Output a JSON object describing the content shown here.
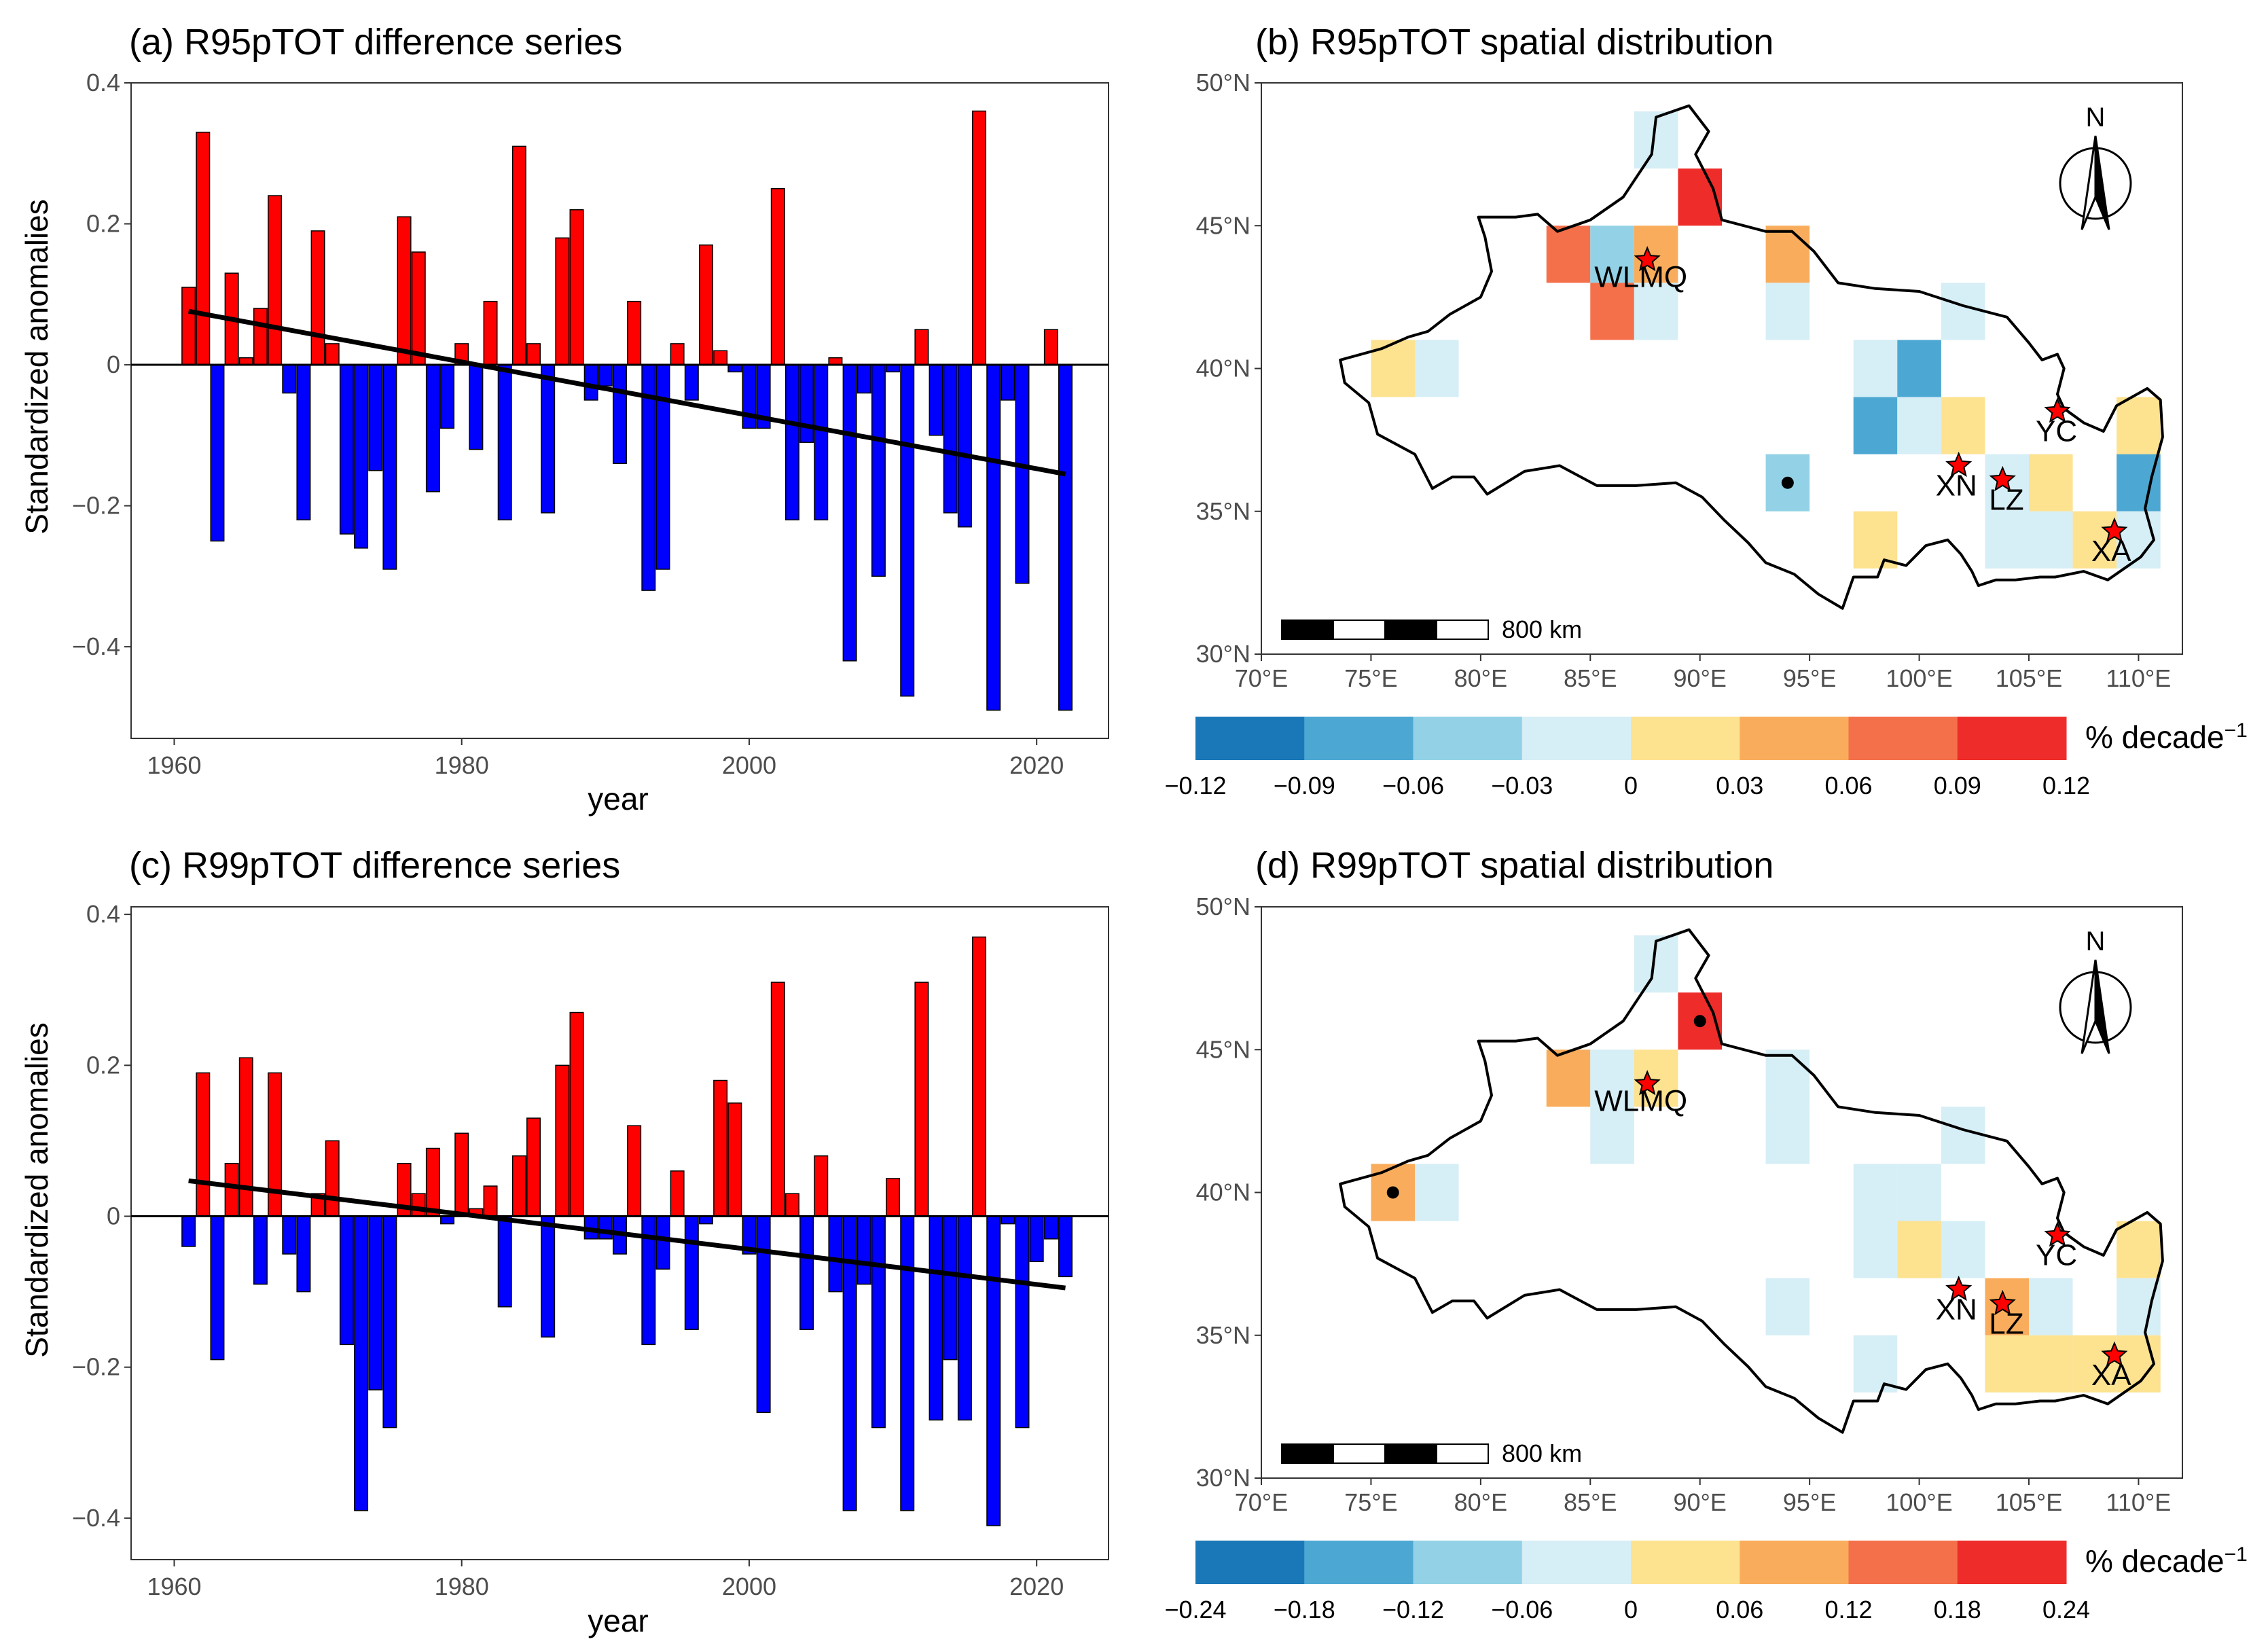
{
  "chart_data": [
    {
      "panel": "a",
      "type": "bar",
      "title": "(a) R95pTOT difference series",
      "xlabel": "year",
      "ylabel": "Standardized anomalies",
      "xlim": [
        1957,
        2025
      ],
      "ylim": [
        -0.53,
        0.4
      ],
      "xticks": [
        1960,
        1980,
        2000,
        2020
      ],
      "yticks": [
        -0.4,
        -0.2,
        0,
        0.2,
        0.4
      ],
      "ytick_labels": [
        "-0.4",
        "-0.2",
        "0",
        "0.2",
        "0.4"
      ],
      "x": [
        1961,
        1962,
        1963,
        1964,
        1965,
        1966,
        1967,
        1968,
        1969,
        1970,
        1971,
        1972,
        1973,
        1974,
        1975,
        1976,
        1977,
        1978,
        1979,
        1980,
        1981,
        1982,
        1983,
        1984,
        1985,
        1986,
        1987,
        1988,
        1989,
        1990,
        1991,
        1992,
        1993,
        1994,
        1995,
        1996,
        1997,
        1998,
        1999,
        2000,
        2001,
        2002,
        2003,
        2004,
        2005,
        2006,
        2007,
        2008,
        2009,
        2010,
        2011,
        2012,
        2013,
        2014,
        2015,
        2016,
        2017,
        2018,
        2019,
        2020,
        2021,
        2022
      ],
      "values": [
        0.11,
        0.33,
        -0.25,
        0.13,
        0.01,
        0.08,
        0.24,
        -0.04,
        -0.22,
        0.19,
        0.03,
        -0.24,
        -0.26,
        -0.15,
        -0.29,
        0.21,
        0.16,
        -0.18,
        -0.09,
        0.03,
        -0.12,
        0.09,
        -0.22,
        0.31,
        0.03,
        -0.21,
        0.18,
        0.22,
        -0.05,
        -0.03,
        -0.14,
        0.09,
        -0.32,
        -0.29,
        0.03,
        -0.05,
        0.17,
        0.02,
        -0.01,
        -0.09,
        -0.09,
        0.25,
        -0.22,
        -0.11,
        -0.22,
        0.01,
        -0.42,
        -0.04,
        -0.3,
        -0.01,
        -0.47,
        0.05,
        -0.1,
        -0.21,
        -0.23,
        0.36,
        -0.49,
        -0.05,
        -0.31,
        0.0,
        0.05,
        -0.49
      ],
      "positive_color": "#ff0000",
      "negative_color": "#0000ff",
      "trend": {
        "x": [
          1961,
          2022
        ],
        "y": [
          0.076,
          -0.155
        ]
      }
    },
    {
      "panel": "c",
      "type": "bar",
      "title": "(c) R99pTOT difference series",
      "xlabel": "year",
      "ylabel": "Standardized anomalies",
      "xlim": [
        1957,
        2025
      ],
      "ylim": [
        -0.455,
        0.41
      ],
      "xticks": [
        1960,
        1980,
        2000,
        2020
      ],
      "yticks": [
        -0.4,
        -0.2,
        0,
        0.2,
        0.4
      ],
      "ytick_labels": [
        "-0.4",
        "-0.2",
        "0",
        "0.2",
        "0.4"
      ],
      "x": [
        1961,
        1962,
        1963,
        1964,
        1965,
        1966,
        1967,
        1968,
        1969,
        1970,
        1971,
        1972,
        1973,
        1974,
        1975,
        1976,
        1977,
        1978,
        1979,
        1980,
        1981,
        1982,
        1983,
        1984,
        1985,
        1986,
        1987,
        1988,
        1989,
        1990,
        1991,
        1992,
        1993,
        1994,
        1995,
        1996,
        1997,
        1998,
        1999,
        2000,
        2001,
        2002,
        2003,
        2004,
        2005,
        2006,
        2007,
        2008,
        2009,
        2010,
        2011,
        2012,
        2013,
        2014,
        2015,
        2016,
        2017,
        2018,
        2019,
        2020,
        2021,
        2022
      ],
      "values": [
        -0.04,
        0.19,
        -0.19,
        0.07,
        0.21,
        -0.09,
        0.19,
        -0.05,
        -0.1,
        0.03,
        0.1,
        -0.17,
        -0.39,
        -0.23,
        -0.28,
        0.07,
        0.03,
        0.09,
        -0.01,
        0.11,
        0.01,
        0.04,
        -0.12,
        0.08,
        0.13,
        -0.16,
        0.2,
        0.27,
        -0.03,
        -0.03,
        -0.05,
        0.12,
        -0.17,
        -0.07,
        0.06,
        -0.15,
        -0.01,
        0.18,
        0.15,
        -0.05,
        -0.26,
        0.31,
        0.03,
        -0.15,
        0.08,
        -0.1,
        -0.39,
        -0.09,
        -0.28,
        0.05,
        -0.39,
        0.31,
        -0.27,
        -0.19,
        -0.27,
        0.37,
        -0.41,
        -0.01,
        -0.28,
        -0.06,
        -0.03,
        -0.08
      ],
      "positive_color": "#ff0000",
      "negative_color": "#0000ff",
      "trend": {
        "x": [
          1961,
          2022
        ],
        "y": [
          0.047,
          -0.095
        ]
      }
    },
    {
      "panel": "b",
      "type": "heatmap",
      "title": "(b) R95pTOT spatial distribution",
      "lon_range": [
        70,
        112
      ],
      "lat_range": [
        30,
        50
      ],
      "xticks": [
        70,
        75,
        80,
        85,
        90,
        95,
        100,
        105,
        110
      ],
      "xtick_labels": [
        "70°E",
        "75°E",
        "80°E",
        "85°E",
        "90°E",
        "95°E",
        "100°E",
        "105°E",
        "110°E"
      ],
      "yticks": [
        30,
        35,
        40,
        45,
        50
      ],
      "ytick_labels": [
        "30°N",
        "35°N",
        "40°N",
        "45°N",
        "50°N"
      ],
      "cells": [
        {
          "lon": 88,
          "lat": 48,
          "v": -0.02
        },
        {
          "lon": 90,
          "lat": 46,
          "v": 0.11
        },
        {
          "lon": 84,
          "lat": 44,
          "v": 0.08
        },
        {
          "lon": 86,
          "lat": 44,
          "v": -0.05
        },
        {
          "lon": 88,
          "lat": 44,
          "v": 0.05
        },
        {
          "lon": 94,
          "lat": 44,
          "v": 0.05
        },
        {
          "lon": 86,
          "lat": 42,
          "v": 0.08
        },
        {
          "lon": 88,
          "lat": 42,
          "v": -0.02
        },
        {
          "lon": 94,
          "lat": 42,
          "v": -0.02
        },
        {
          "lon": 102,
          "lat": 42,
          "v": -0.02
        },
        {
          "lon": 76,
          "lat": 40,
          "v": 0.02
        },
        {
          "lon": 78,
          "lat": 40,
          "v": -0.02
        },
        {
          "lon": 98,
          "lat": 40,
          "v": -0.02
        },
        {
          "lon": 100,
          "lat": 40,
          "v": -0.07
        },
        {
          "lon": 98,
          "lat": 38,
          "v": -0.07
        },
        {
          "lon": 100,
          "lat": 38,
          "v": -0.02
        },
        {
          "lon": 102,
          "lat": 38,
          "v": 0.02
        },
        {
          "lon": 110,
          "lat": 38,
          "v": 0.02
        },
        {
          "lon": 94,
          "lat": 36,
          "v": -0.05
        },
        {
          "lon": 104,
          "lat": 36,
          "v": -0.02
        },
        {
          "lon": 106,
          "lat": 36,
          "v": 0.02
        },
        {
          "lon": 110,
          "lat": 36,
          "v": -0.07
        },
        {
          "lon": 98,
          "lat": 34,
          "v": 0.02
        },
        {
          "lon": 104,
          "lat": 34,
          "v": -0.02
        },
        {
          "lon": 106,
          "lat": 34,
          "v": -0.02
        },
        {
          "lon": 108,
          "lat": 34,
          "v": 0.02
        },
        {
          "lon": 110,
          "lat": 34,
          "v": -0.02
        }
      ],
      "significant_points": [
        {
          "lon": 94,
          "lat": 36
        }
      ],
      "cities": [
        {
          "name": "WLMQ",
          "lon": 87.6,
          "lat": 43.8
        },
        {
          "name": "YC",
          "lon": 106.3,
          "lat": 38.5
        },
        {
          "name": "XN",
          "lon": 101.8,
          "lat": 36.6
        },
        {
          "name": "LZ",
          "lon": 103.8,
          "lat": 36.1
        },
        {
          "name": "XA",
          "lon": 108.9,
          "lat": 34.3
        }
      ],
      "scale_bar_label": "800 km",
      "north_label": "N",
      "colorbar": {
        "ticks": [
          "-0.12",
          "-0.09",
          "-0.06",
          "-0.03",
          "0",
          "0.03",
          "0.06",
          "0.09",
          "0.12"
        ],
        "bounds": [
          -0.12,
          -0.09,
          -0.06,
          -0.03,
          0,
          0.03,
          0.06,
          0.09,
          0.12
        ],
        "colors": [
          "#1a78b8",
          "#4ca8d2",
          "#93d2e6",
          "#d6eef6",
          "#fde290",
          "#f9ad5c",
          "#f4704a",
          "#ee2d2a"
        ],
        "unit": "% decade",
        "unit_superscript": "−1"
      }
    },
    {
      "panel": "d",
      "type": "heatmap",
      "title": "(d) R99pTOT spatial distribution",
      "lon_range": [
        70,
        112
      ],
      "lat_range": [
        30,
        50
      ],
      "xticks": [
        70,
        75,
        80,
        85,
        90,
        95,
        100,
        105,
        110
      ],
      "xtick_labels": [
        "70°E",
        "75°E",
        "80°E",
        "85°E",
        "90°E",
        "95°E",
        "100°E",
        "105°E",
        "110°E"
      ],
      "yticks": [
        30,
        35,
        40,
        45,
        50
      ],
      "ytick_labels": [
        "30°N",
        "35°N",
        "40°N",
        "45°N",
        "50°N"
      ],
      "cells": [
        {
          "lon": 88,
          "lat": 48,
          "v": -0.03
        },
        {
          "lon": 90,
          "lat": 46,
          "v": 0.22
        },
        {
          "lon": 84,
          "lat": 44,
          "v": 0.08
        },
        {
          "lon": 86,
          "lat": 44,
          "v": -0.03
        },
        {
          "lon": 88,
          "lat": 44,
          "v": 0.03
        },
        {
          "lon": 94,
          "lat": 44,
          "v": -0.03
        },
        {
          "lon": 86,
          "lat": 42,
          "v": -0.03
        },
        {
          "lon": 94,
          "lat": 42,
          "v": -0.03
        },
        {
          "lon": 102,
          "lat": 42,
          "v": -0.03
        },
        {
          "lon": 76,
          "lat": 40,
          "v": 0.08
        },
        {
          "lon": 78,
          "lat": 40,
          "v": -0.03
        },
        {
          "lon": 98,
          "lat": 40,
          "v": -0.03
        },
        {
          "lon": 100,
          "lat": 40,
          "v": -0.03
        },
        {
          "lon": 98,
          "lat": 38,
          "v": -0.03
        },
        {
          "lon": 100,
          "lat": 38,
          "v": 0.03
        },
        {
          "lon": 102,
          "lat": 38,
          "v": -0.03
        },
        {
          "lon": 110,
          "lat": 38,
          "v": 0.03
        },
        {
          "lon": 94,
          "lat": 36,
          "v": -0.03
        },
        {
          "lon": 104,
          "lat": 36,
          "v": 0.08
        },
        {
          "lon": 106,
          "lat": 36,
          "v": -0.03
        },
        {
          "lon": 110,
          "lat": 36,
          "v": -0.03
        },
        {
          "lon": 98,
          "lat": 34,
          "v": -0.03
        },
        {
          "lon": 104,
          "lat": 34,
          "v": 0.03
        },
        {
          "lon": 106,
          "lat": 34,
          "v": 0.03
        },
        {
          "lon": 108,
          "lat": 34,
          "v": 0.03
        },
        {
          "lon": 110,
          "lat": 34,
          "v": 0.03
        }
      ],
      "significant_points": [
        {
          "lon": 90,
          "lat": 46
        },
        {
          "lon": 76,
          "lat": 40
        }
      ],
      "cities": [
        {
          "name": "WLMQ",
          "lon": 87.6,
          "lat": 43.8
        },
        {
          "name": "YC",
          "lon": 106.3,
          "lat": 38.5
        },
        {
          "name": "XN",
          "lon": 101.8,
          "lat": 36.6
        },
        {
          "name": "LZ",
          "lon": 103.8,
          "lat": 36.1
        },
        {
          "name": "XA",
          "lon": 108.9,
          "lat": 34.3
        }
      ],
      "scale_bar_label": "800 km",
      "north_label": "N",
      "colorbar": {
        "ticks": [
          "-0.24",
          "-0.18",
          "-0.12",
          "-0.06",
          "0",
          "0.06",
          "0.12",
          "0.18",
          "0.24"
        ],
        "bounds": [
          -0.24,
          -0.18,
          -0.12,
          -0.06,
          0,
          0.06,
          0.12,
          0.18,
          0.24
        ],
        "colors": [
          "#1a78b8",
          "#4ca8d2",
          "#93d2e6",
          "#d6eef6",
          "#fde290",
          "#f9ad5c",
          "#f4704a",
          "#ee2d2a"
        ],
        "unit": "% decade",
        "unit_superscript": "−1"
      }
    }
  ]
}
